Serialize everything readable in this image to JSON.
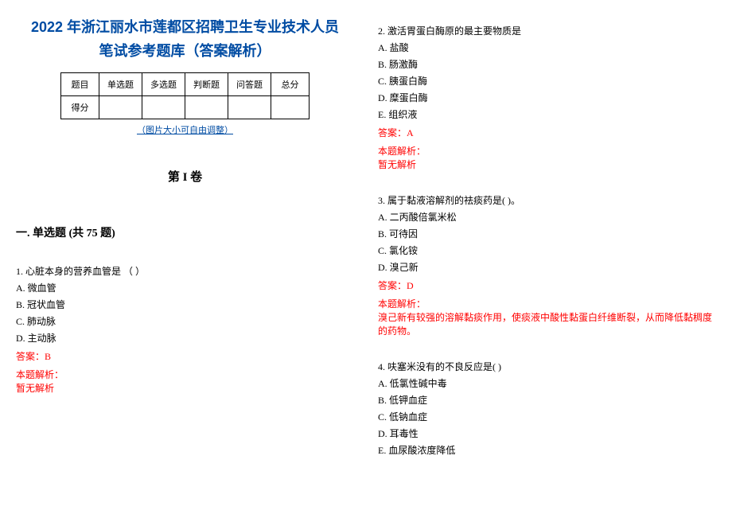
{
  "title_line1": "2022 年浙江丽水市莲都区招聘卫生专业技术人员",
  "title_line2": "笔试参考题库（答案解析）",
  "table_headers": [
    "题目",
    "单选题",
    "多选题",
    "判断题",
    "问答题",
    "总分"
  ],
  "table_row2_first": "得分",
  "note": "（图片大小可自由调整）",
  "section1": "第 I 卷",
  "category1": "一. 单选题 (共 75 题)",
  "q1": {
    "text": "1. 心脏本身的营养血管是    （        ）",
    "options": [
      "A. 微血管",
      "B. 冠状血管",
      "C. 肺动脉",
      "D. 主动脉"
    ],
    "answer": "答案：B",
    "analysis_label": "本题解析：",
    "analysis_text": "暂无解析"
  },
  "q2": {
    "text": "2. 激活胃蛋白酶原的最主要物质是",
    "options": [
      "A. 盐酸",
      "B. 肠激酶",
      "C. 胰蛋白酶",
      "D. 糜蛋白酶",
      "E. 组织液"
    ],
    "answer": "答案：A",
    "analysis_label": "本题解析：",
    "analysis_text": "暂无解析"
  },
  "q3": {
    "text": "3. 属于黏液溶解剂的祛痰药是(   )。",
    "options": [
      "A. 二丙酸倍氯米松",
      "B. 可待因",
      "C. 氯化铵",
      "D. 溴己新"
    ],
    "answer": "答案：D",
    "analysis_label": "本题解析：",
    "analysis_text": "溴己新有较强的溶解黏痰作用，使痰液中酸性黏蛋白纤维断裂，从而降低黏稠度的药物。"
  },
  "q4": {
    "text": "4. 呋塞米没有的不良反应是(   )",
    "options": [
      "A. 低氯性碱中毒",
      "B. 低钾血症",
      "C. 低钠血症",
      "D. 耳毒性",
      "E. 血尿酸浓度降低"
    ]
  },
  "colors": {
    "title_color": "#004ca3",
    "answer_color": "#ff0000",
    "text_color": "#000000",
    "background": "#ffffff"
  }
}
